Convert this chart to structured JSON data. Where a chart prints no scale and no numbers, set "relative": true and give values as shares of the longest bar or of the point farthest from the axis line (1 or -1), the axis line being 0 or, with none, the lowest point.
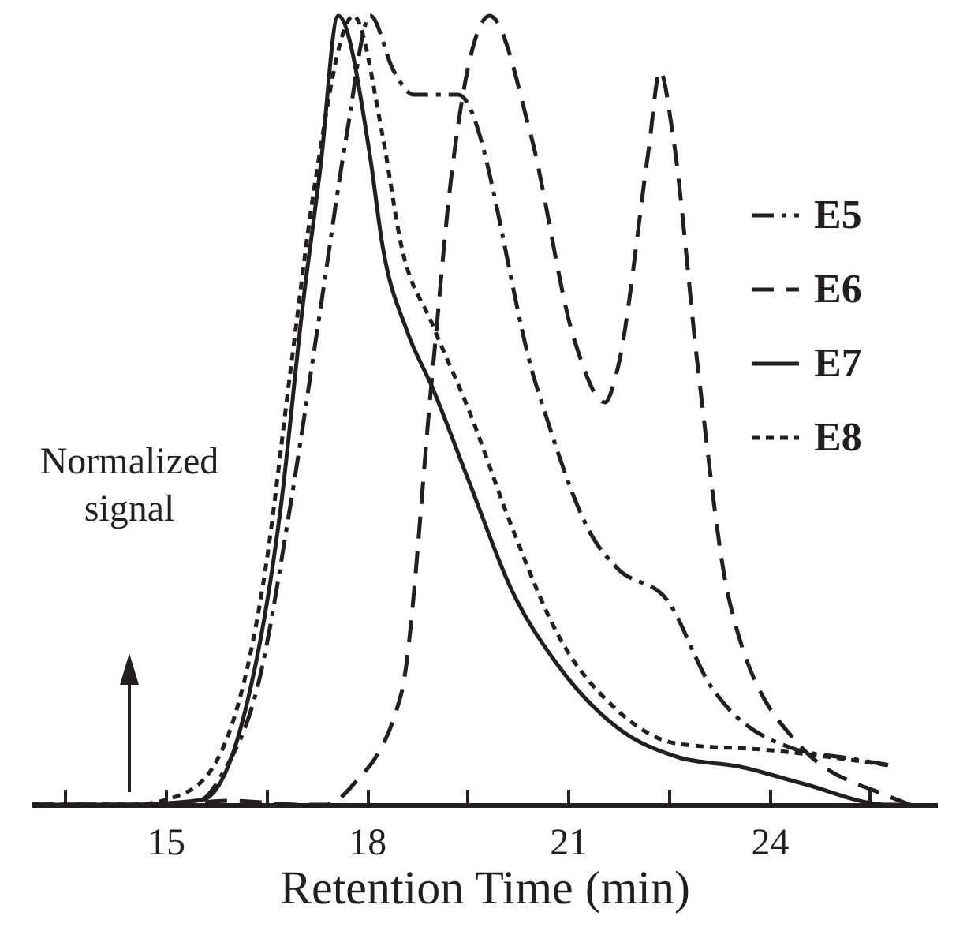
{
  "chart_data": {
    "type": "line",
    "relative": true,
    "xlabel": "Retention Time (min)",
    "annotations": [
      "Normalized signal"
    ],
    "xlim": [
      13,
      26.5
    ],
    "xticks": [
      {
        "value": 13.5,
        "label": null
      },
      15,
      {
        "value": 16.5,
        "label": null
      },
      18,
      {
        "value": 19.5,
        "label": null
      },
      21,
      {
        "value": 22.5,
        "label": null
      },
      24,
      {
        "value": 25.5,
        "label": null
      }
    ],
    "grid": false,
    "legend": "top right",
    "marker": "none",
    "series": [
      {
        "name": "E5",
        "color": "#231f20",
        "line_style": "dashdot",
        "x": [
          13,
          14.5,
          15.5,
          15.85,
          16.4,
          16.86,
          17.31,
          17.7,
          18.05,
          18.4,
          18.7,
          19.36,
          20.53,
          21.36,
          21.73,
          22.47,
          23.13,
          24.4,
          25.1,
          25.8
        ],
        "values": [
          0,
          0,
          0.005,
          0.04,
          0.16,
          0.38,
          0.63,
          0.85,
          1.0,
          0.93,
          0.9,
          0.9,
          0.53,
          0.34,
          0.3,
          0.26,
          0.15,
          0.07,
          0.06,
          0.05
        ]
      },
      {
        "name": "E6",
        "color": "#231f20",
        "line_style": "dashed",
        "x": [
          13,
          15,
          16,
          17,
          17.4,
          17.78,
          18.51,
          18.98,
          19.25,
          19.55,
          19.83,
          20.44,
          21.09,
          21.55,
          21.73,
          22.2,
          22.37,
          22.56,
          22.94,
          23.4,
          24.4,
          25.8,
          26.1
        ],
        "values": [
          0,
          0,
          0.005,
          0,
          0,
          0.024,
          0.14,
          0.55,
          0.79,
          0.95,
          1.0,
          0.85,
          0.59,
          0.51,
          0.55,
          0.83,
          0.93,
          0.85,
          0.55,
          0.26,
          0.08,
          0.01,
          0
        ]
      },
      {
        "name": "E7",
        "color": "#231f20",
        "line_style": "solid",
        "x": [
          13,
          14.5,
          15.2,
          15.57,
          16.12,
          16.72,
          17.04,
          17.31,
          17.57,
          18.05,
          18.23,
          18.6,
          18.97,
          19.52,
          20.17,
          20.82,
          21.73,
          22.65,
          23.57,
          24.49,
          25.78,
          26.1
        ],
        "values": [
          0,
          0,
          0.003,
          0.007,
          0.098,
          0.38,
          0.63,
          0.81,
          1.0,
          0.82,
          0.71,
          0.6,
          0.53,
          0.41,
          0.27,
          0.18,
          0.098,
          0.06,
          0.048,
          0.027,
          0,
          0
        ]
      },
      {
        "name": "E8",
        "color": "#231f20",
        "line_style": "dotted",
        "x": [
          13,
          14.5,
          15.29,
          15.94,
          16.49,
          16.86,
          17.23,
          17.8,
          18.23,
          18.51,
          18.97,
          19.52,
          20.17,
          20.82,
          21.73,
          22.65,
          24.03,
          25.78
        ],
        "values": [
          0,
          0,
          0.015,
          0.09,
          0.3,
          0.55,
          0.79,
          1.0,
          0.85,
          0.71,
          0.61,
          0.5,
          0.35,
          0.22,
          0.12,
          0.077,
          0.069,
          0.05
        ]
      }
    ]
  }
}
